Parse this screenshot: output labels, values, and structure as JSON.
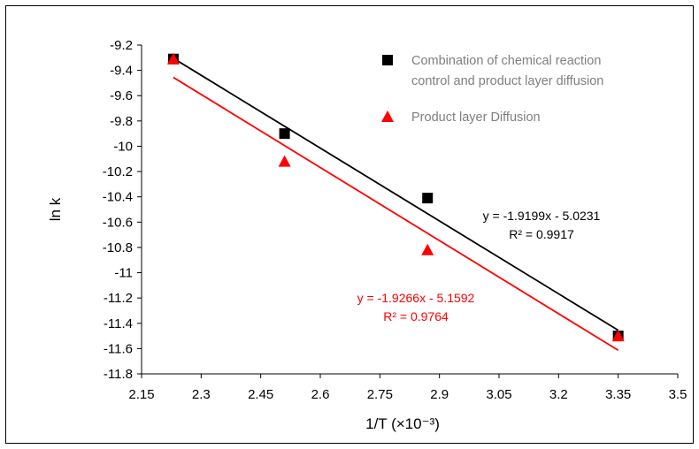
{
  "chart_data": {
    "type": "scatter",
    "xlabel": "1/T (×10⁻³)",
    "ylabel": "ln k",
    "xlim": [
      2.15,
      3.5
    ],
    "ylim": [
      -11.8,
      -9.2
    ],
    "x_ticks": [
      "2.15",
      "2.3",
      "2.45",
      "2.6",
      "2.75",
      "2.9",
      "3.05",
      "3.2",
      "3.35",
      "3.5"
    ],
    "y_ticks": [
      "-9.2",
      "-9.4",
      "-9.6",
      "-9.8",
      "-10",
      "-10.2",
      "-10.4",
      "-10.6",
      "-10.8",
      "-11",
      "-11.2",
      "-11.4",
      "-11.6",
      "-11.8"
    ],
    "grid": false,
    "legend_position": "top-right",
    "series": [
      {
        "name": "Combination of chemical reaction control and product layer diffusion",
        "name_lines": [
          "Combination of chemical reaction",
          "control and product layer diffusion"
        ],
        "marker": "square",
        "color": "#000000",
        "x": [
          2.23,
          2.51,
          2.87,
          3.35
        ],
        "y": [
          -9.31,
          -9.9,
          -10.41,
          -11.5
        ],
        "trendline": {
          "slope": -1.9199,
          "intercept": -5.0231,
          "equation": "y = -1.9199x - 5.0231",
          "r2": "R² = 0.9917"
        }
      },
      {
        "name": "Product layer Diffusion",
        "name_lines": [
          "Product layer Diffusion"
        ],
        "marker": "triangle",
        "color": "#ff0000",
        "x": [
          2.23,
          2.51,
          2.87,
          3.35
        ],
        "y": [
          -9.31,
          -10.12,
          -10.82,
          -11.5
        ],
        "trendline": {
          "slope": -1.9266,
          "intercept": -5.1592,
          "equation": "y = -1.9266x - 5.1592",
          "r2": "R² = 0.9764"
        }
      }
    ]
  }
}
